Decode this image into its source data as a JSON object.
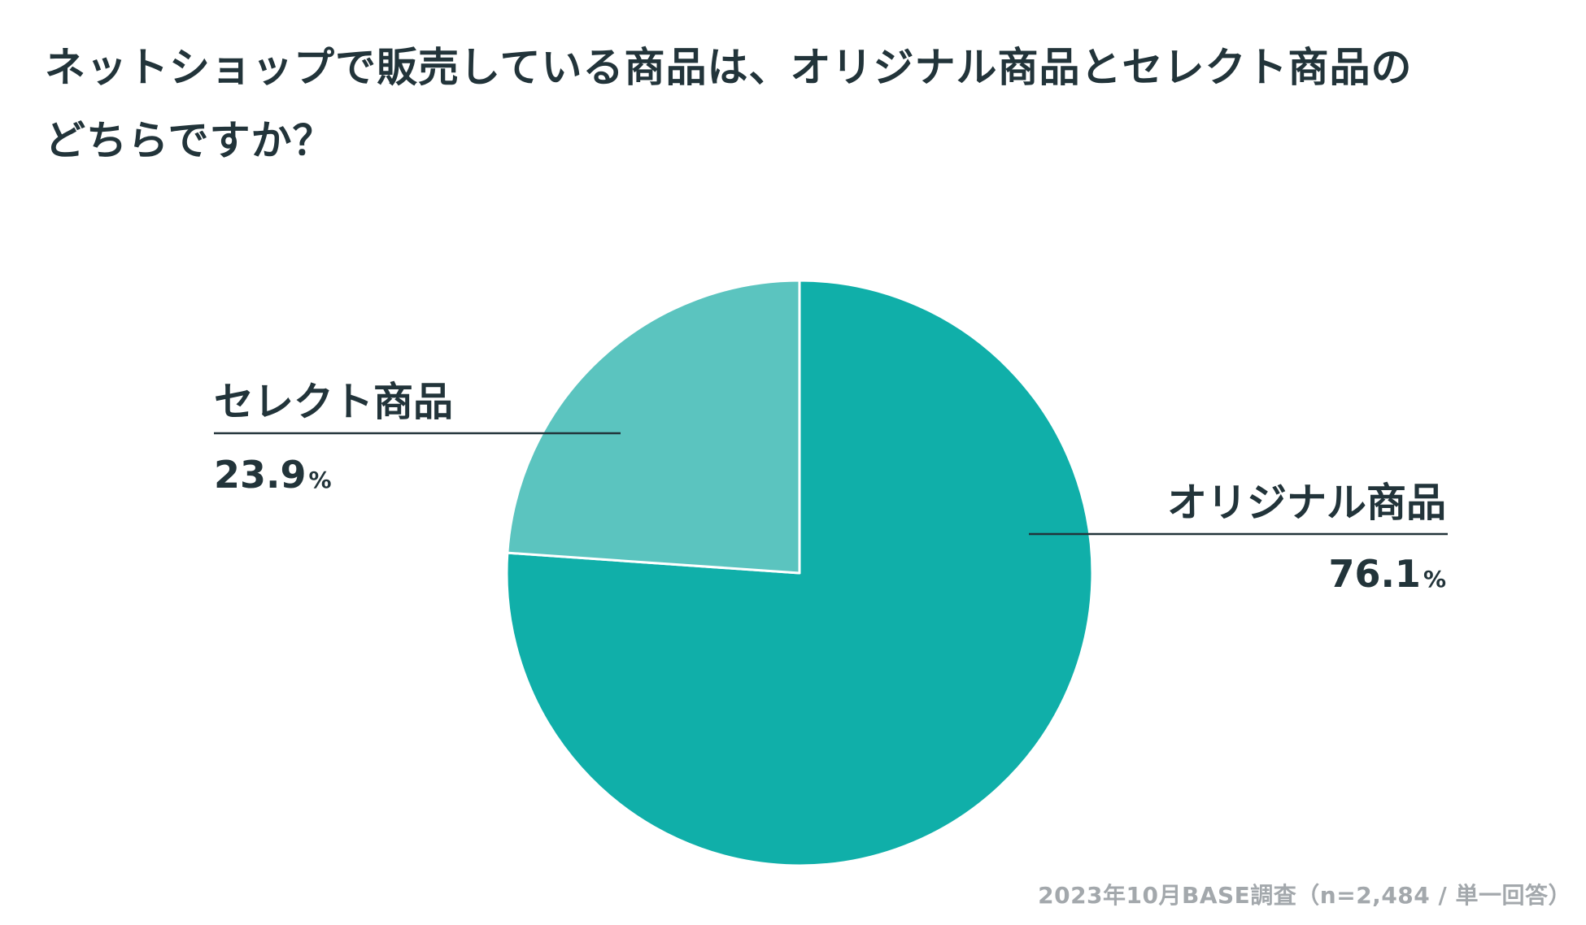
{
  "chart_data": {
    "type": "pie",
    "title_lines": [
      "ネットショップで販売している商品は、オリジナル商品とセレクト商品の",
      "どちらですか？"
    ],
    "categories": [
      "オリジナル商品",
      "セレクト商品"
    ],
    "values": [
      76.1,
      23.9
    ],
    "value_labels": [
      "76.1",
      "23.9"
    ],
    "unit": "%",
    "colors": [
      "#10afa9",
      "#5bc4bf"
    ],
    "slice_border_color": "#ffffff",
    "start": "12 o'clock, clockwise",
    "legend": "none (direct labels with leader lines)"
  },
  "footer": {
    "source": "2023年10月BASE調査（n=2,484 / 単一回答）"
  }
}
